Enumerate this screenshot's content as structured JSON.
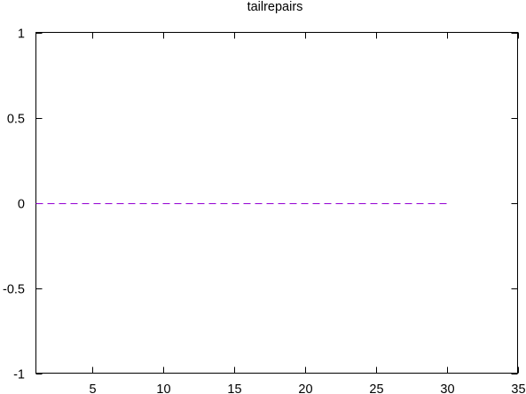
{
  "chart_data": {
    "type": "line",
    "title": "tailrepairs",
    "xlabel": "",
    "ylabel": "",
    "xlim": [
      1,
      35
    ],
    "ylim": [
      -1,
      1
    ],
    "x_ticks": [
      5,
      10,
      15,
      20,
      25,
      30,
      35
    ],
    "y_ticks": [
      -1,
      -0.5,
      0,
      0.5,
      1
    ],
    "x_tick_labels": [
      "5",
      "10",
      "15",
      "20",
      "25",
      "30",
      "35"
    ],
    "y_tick_labels": [
      "-1",
      "-0.5",
      "0",
      "0.5",
      "1"
    ],
    "grid": false,
    "legend": "none",
    "series": [
      {
        "color": "#9400d3",
        "line_style": "dashed",
        "x": [
          1,
          2,
          3,
          4,
          5,
          6,
          7,
          8,
          9,
          10,
          11,
          12,
          13,
          14,
          15,
          16,
          17,
          18,
          19,
          20,
          21,
          22,
          23,
          24,
          25,
          26,
          27,
          28,
          29,
          30
        ],
        "y": [
          0,
          0,
          0,
          0,
          0,
          0,
          0,
          0,
          0,
          0,
          0,
          0,
          0,
          0,
          0,
          0,
          0,
          0,
          0,
          0,
          0,
          0,
          0,
          0,
          0,
          0,
          0,
          0,
          0,
          0
        ]
      }
    ]
  }
}
